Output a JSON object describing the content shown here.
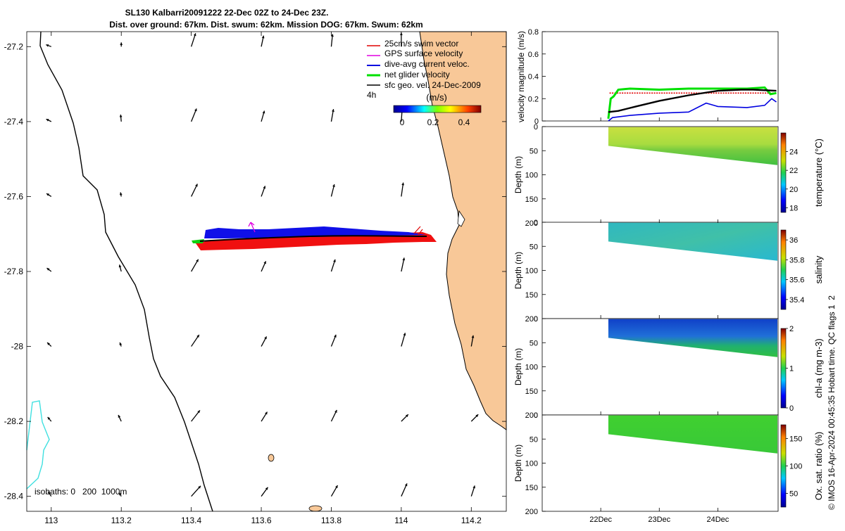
{
  "title": {
    "line1": "SL130 Kalbarri20091222 22-Dec 02Z to 24-Dec 23Z.",
    "line2": "Dist. over ground: 67km. Dist. swum: 62km. Mission DOG: 67km. Swum: 62km"
  },
  "map": {
    "legend": {
      "items": [
        {
          "label": "25cm/s swim vector",
          "color": "#e00000"
        },
        {
          "label": "GPS surface velocity",
          "color": "#e000e0"
        },
        {
          "label": "dive-avg current veloc.",
          "color": "#0000e0"
        },
        {
          "label": "net glider velocity",
          "color": "#00e000"
        },
        {
          "label": "sfc geo. vel. 24-Dec-2009",
          "color": "#000000"
        }
      ],
      "interval": "4h"
    },
    "colorbar": {
      "unit": "(m/s)",
      "ticks": [
        "0",
        "0.2",
        "0.4"
      ]
    },
    "isobaths": "isobaths: 0   200  1000m",
    "land_color": "#f8c898"
  },
  "chart_data": [
    {
      "type": "scatter",
      "name": "glider track map",
      "xlim": [
        112.93,
        114.3
      ],
      "ylim": [
        -28.44,
        -27.16
      ],
      "xticks": [
        "113",
        "113.2",
        "113.4",
        "113.6",
        "113.8",
        "114",
        "114.2"
      ],
      "xtick_values": [
        113,
        113.2,
        113.4,
        113.6,
        113.8,
        114,
        114.2
      ],
      "yticks": [
        "-27.2",
        "-27.4",
        "-27.6",
        "-27.8",
        "-28",
        "-28.2",
        "-28.4"
      ],
      "ytick_values": [
        -27.2,
        -27.4,
        -27.6,
        -27.8,
        -28,
        -28.2,
        -28.4
      ],
      "track": {
        "start": [
          113.35,
          -27.72
        ],
        "end": [
          114.06,
          -27.705
        ]
      },
      "vector_grid": {
        "lons": [
          113,
          113.2,
          113.4,
          113.6,
          113.8,
          114,
          114.2
        ],
        "lats": [
          -27.2,
          -27.4,
          -27.6,
          -27.8,
          -28,
          -28.2,
          -28.4
        ],
        "speed_note": "surface geostrophic velocity 24-Dec-2009"
      }
    },
    {
      "type": "line",
      "name": "velocity magnitude",
      "ylabel": "velocity magnitude (m/s)",
      "ylim": [
        0,
        0.8
      ],
      "yticks": [
        "0",
        "0.2",
        "0.4",
        "0.6",
        "0.8"
      ],
      "xlim": [
        21.0,
        25.03
      ],
      "xticks": [
        "22Dec",
        "23Dec",
        "24Dec"
      ],
      "series": [
        {
          "name": "swim vector",
          "color": "#e00000",
          "x": [
            22.15,
            22.4,
            23.0,
            23.5,
            24.0,
            24.5,
            25.0
          ],
          "y": [
            0.25,
            0.25,
            0.25,
            0.25,
            0.25,
            0.25,
            0.25
          ]
        },
        {
          "name": "net glider velocity",
          "color": "#00e000",
          "x": [
            22.13,
            22.17,
            22.22,
            22.3,
            22.5,
            23.0,
            23.5,
            24.0,
            24.5,
            24.8,
            24.9,
            25.0
          ],
          "y": [
            0.02,
            0.2,
            0.22,
            0.28,
            0.29,
            0.28,
            0.29,
            0.29,
            0.29,
            0.3,
            0.24,
            0.25
          ]
        },
        {
          "name": "dive-avg current",
          "color": "#0000e0",
          "x": [
            22.13,
            22.2,
            22.5,
            23.0,
            23.5,
            23.8,
            24.0,
            24.5,
            24.8,
            24.92,
            25.0
          ],
          "y": [
            0.0,
            0.03,
            0.05,
            0.07,
            0.08,
            0.16,
            0.13,
            0.12,
            0.14,
            0.2,
            0.17
          ]
        },
        {
          "name": "sfc geo. vel.",
          "color": "#000000",
          "x": [
            22.13,
            22.3,
            22.6,
            23.0,
            23.5,
            24.0,
            24.4,
            24.6,
            25.0
          ],
          "y": [
            0.08,
            0.09,
            0.13,
            0.18,
            0.23,
            0.27,
            0.28,
            0.28,
            0.27
          ]
        }
      ]
    },
    {
      "type": "heatmap",
      "name": "temperature",
      "ylabel": "Depth (m)",
      "ylim": [
        200,
        0
      ],
      "yticks": [
        "0",
        "50",
        "100",
        "150",
        "200"
      ],
      "clabel": "temperature (°C)",
      "clim": [
        17.5,
        26
      ],
      "cticks": [
        "18",
        "20",
        "22",
        "24"
      ],
      "value_range": "surface ~23, bottom ~20"
    },
    {
      "type": "heatmap",
      "name": "salinity",
      "ylabel": "Depth (m)",
      "ylim": [
        200,
        0
      ],
      "yticks": [
        "0",
        "50",
        "100",
        "150",
        "200"
      ],
      "clabel": "salinity",
      "clim": [
        35.3,
        36.1
      ],
      "cticks": [
        "35.4",
        "35.6",
        "35.8",
        "36"
      ],
      "value_range": "~35.65-35.75"
    },
    {
      "type": "heatmap",
      "name": "chl-a",
      "ylabel": "Depth (m)",
      "ylim": [
        200,
        0
      ],
      "yticks": [
        "0",
        "50",
        "100",
        "150",
        "200"
      ],
      "clabel": "chl-a (mg m-3)",
      "clim": [
        0,
        2
      ],
      "cticks": [
        "0",
        "1",
        "2"
      ],
      "value_range": "surface ~0.2, deep ~0.9"
    },
    {
      "type": "heatmap",
      "name": "oxygen",
      "ylabel": "Depth (m)",
      "ylim": [
        200,
        0
      ],
      "yticks": [
        "0",
        "50",
        "100",
        "150",
        "200"
      ],
      "clabel": "Ox. sat. ratio (%)",
      "clim": [
        25,
        175
      ],
      "cticks": [
        "50",
        "100",
        "150"
      ],
      "value_range": "~100"
    }
  ],
  "footer": "© IMOS 16-Apr-2024 00:45:35 Hobart time. QC flags 1  2"
}
